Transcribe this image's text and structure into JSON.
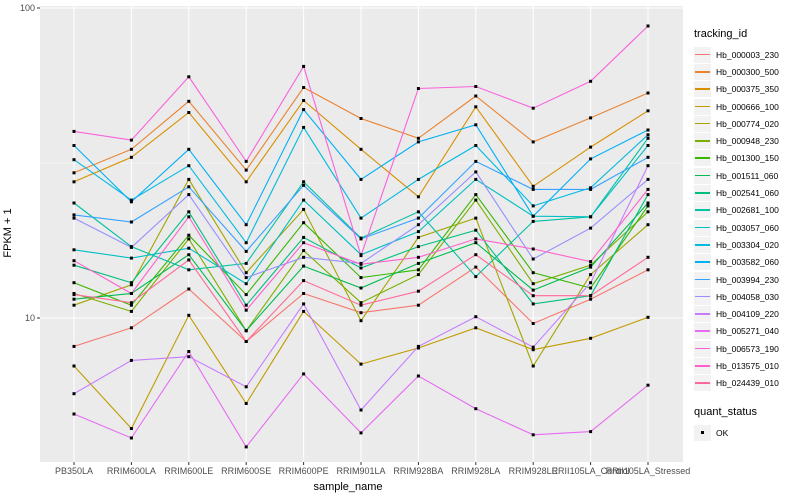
{
  "chart_data": {
    "type": "line",
    "title": "",
    "xlabel": "sample_name",
    "ylabel": "FPKM + 1",
    "y_scale": "log10",
    "ylim": [
      3.4,
      102
    ],
    "yticks": [
      100,
      10
    ],
    "y_minor_ticks": [
      31.6
    ],
    "grid": true,
    "legend_position": "right",
    "marker": {
      "shape": "square",
      "color": "#000000",
      "size": 3
    },
    "categories": [
      "PB350LA",
      "RRIM600LA",
      "RRIM600LE",
      "RRIM600SE",
      "RRIM600PE",
      "RRIM901LA",
      "RRIM928BA",
      "RRIM928LA",
      "RRIM928LE",
      "RRII105LA_Control",
      "RRII105LA_Stressed"
    ],
    "series": [
      {
        "name": "Hb_000003_230",
        "color": "#F8766D",
        "values": [
          8.1,
          9.3,
          12.4,
          8.4,
          12.0,
          10.4,
          11.0,
          14.6,
          9.6,
          11.5,
          14.3
        ]
      },
      {
        "name": "Hb_000300_500",
        "color": "#EA8331",
        "values": [
          29.4,
          35,
          50,
          30,
          55.4,
          44,
          38,
          52,
          37,
          44.2,
          53.2
        ]
      },
      {
        "name": "Hb_000375_350",
        "color": "#D89000",
        "values": [
          27.5,
          33,
          46,
          27.5,
          50.3,
          35,
          24.6,
          48,
          26.6,
          35.6,
          46.6
        ]
      },
      {
        "name": "Hb_000666_100",
        "color": "#C09B00",
        "values": [
          7.0,
          4.4,
          10.2,
          5.3,
          10.5,
          7.1,
          8.0,
          9.3,
          7.9,
          8.6,
          10.05
        ]
      },
      {
        "name": "Hb_000774_020",
        "color": "#A3A500",
        "values": [
          11.0,
          12.8,
          28,
          14.0,
          22.4,
          9.8,
          18.2,
          21,
          7.0,
          13.8,
          20
        ]
      },
      {
        "name": "Hb_000948_230",
        "color": "#7CAE00",
        "values": [
          12.0,
          10.5,
          18,
          9.1,
          16.5,
          11.2,
          13.8,
          24,
          12.9,
          14.8,
          22
        ]
      },
      {
        "name": "Hb_001300_150",
        "color": "#39B600",
        "values": [
          13.0,
          11.0,
          18.5,
          11.9,
          20.3,
          13.5,
          14.3,
          25,
          14.0,
          12.5,
          23
        ]
      },
      {
        "name": "Hb_001511_060",
        "color": "#00BB4E",
        "values": [
          11.5,
          12.0,
          16,
          9.1,
          14.7,
          12.5,
          15.0,
          17.5,
          12.3,
          14.6,
          23.5
        ]
      },
      {
        "name": "Hb_002541_060",
        "color": "#00BF7D",
        "values": [
          14.8,
          13.0,
          22,
          11.0,
          18.2,
          14.5,
          17.0,
          19.2,
          11.1,
          11.8,
          25
        ]
      },
      {
        "name": "Hb_002681_100",
        "color": "#00C1A3",
        "values": [
          23.5,
          17.0,
          14.3,
          15.0,
          27.5,
          18.1,
          22.0,
          13.6,
          20.5,
          21.2,
          38
        ]
      },
      {
        "name": "Hb_003057_060",
        "color": "#00BFC4",
        "values": [
          16.6,
          15.6,
          16.8,
          12.9,
          24,
          16,
          19,
          28,
          21.3,
          21.2,
          36
        ]
      },
      {
        "name": "Hb_003304_020",
        "color": "#00BAE0",
        "values": [
          32.4,
          24,
          31,
          17.5,
          41.2,
          21,
          28,
          36,
          23,
          26.3,
          39
        ]
      },
      {
        "name": "Hb_003582_060",
        "color": "#00B0F6",
        "values": [
          36,
          23.7,
          35,
          20,
          47,
          28,
          37,
          42,
          21.3,
          32.6,
          40.4
        ]
      },
      {
        "name": "Hb_003994_230",
        "color": "#35A2FF",
        "values": [
          21.5,
          20.4,
          26.5,
          16.4,
          26.8,
          18,
          21,
          32,
          26,
          26,
          33
        ]
      },
      {
        "name": "Hb_004058_030",
        "color": "#9590FF",
        "values": [
          21.0,
          16.9,
          25,
          13.5,
          15.7,
          15,
          20,
          29.6,
          15.5,
          19.5,
          28
        ]
      },
      {
        "name": "Hb_004109_220",
        "color": "#C77CFF",
        "values": [
          5.7,
          7.3,
          7.5,
          6.0,
          11.1,
          5.05,
          8.1,
          10.1,
          8.05,
          13,
          31
        ]
      },
      {
        "name": "Hb_005271_040",
        "color": "#E76BF3",
        "values": [
          4.9,
          4.1,
          7.8,
          3.84,
          6.6,
          4.26,
          6.5,
          5.1,
          4.2,
          4.3,
          6.07
        ]
      },
      {
        "name": "Hb_006573_190",
        "color": "#FA62DB",
        "values": [
          40,
          37.5,
          60,
          32,
          64.8,
          15.9,
          55,
          55.8,
          47.5,
          58,
          87.5
        ]
      },
      {
        "name": "Hb_013575_010",
        "color": "#FF61CC",
        "values": [
          15.3,
          12.0,
          21.2,
          10.6,
          17.5,
          14.9,
          15.7,
          18,
          16.7,
          15.2,
          26
        ]
      },
      {
        "name": "Hb_024439_010",
        "color": "#FF6A98",
        "values": [
          11.9,
          11.2,
          15.4,
          8.4,
          13.2,
          11.0,
          12.2,
          16,
          11.8,
          11.8,
          15.7
        ]
      }
    ]
  },
  "legend": {
    "tracking_title": "tracking_id",
    "quant_title": "quant_status",
    "quant_items": [
      {
        "label": "OK"
      }
    ]
  },
  "colors": {
    "panel": "#EBEBEB",
    "grid_major": "#FFFFFF",
    "grid_minor": "#F7F7F7",
    "tick_text": "#4D4D4D",
    "tick_mark": "#333333",
    "axis_title": "#000000",
    "legend_key_bg": "#F2F2F2",
    "marker": "#000000"
  }
}
